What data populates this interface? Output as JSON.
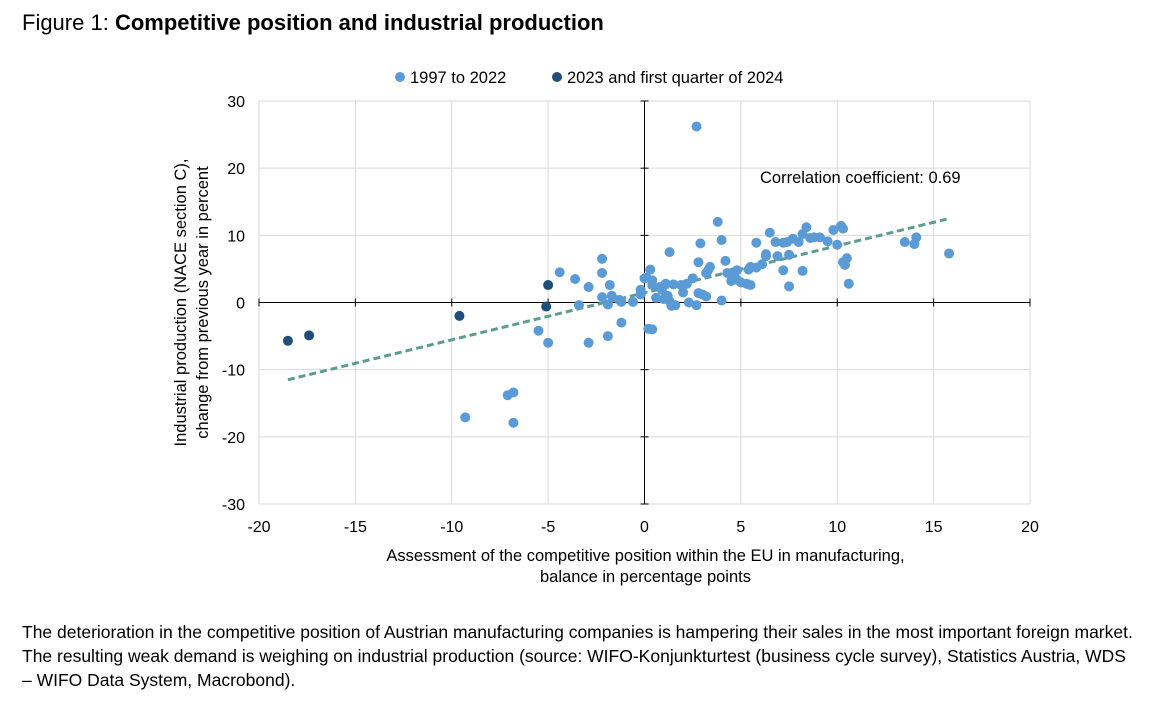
{
  "figure": {
    "label": "Figure 1:",
    "title": "Competitive position and industrial production"
  },
  "chart_data": {
    "type": "scatter",
    "title": "Competitive position and industrial production",
    "xlabel_lines": [
      "Assessment of the competitive position within the EU in manufacturing,",
      "balance in percentage points"
    ],
    "ylabel_lines": [
      "Industrial production (NACE section C),",
      "change from previous year in percent"
    ],
    "xlim": [
      -20,
      20
    ],
    "ylim": [
      -30,
      30
    ],
    "xticks": [
      -20,
      -15,
      -10,
      -5,
      0,
      5,
      10,
      15,
      20
    ],
    "yticks": [
      -30,
      -20,
      -10,
      0,
      10,
      20,
      30
    ],
    "grid": true,
    "legend_position": "top",
    "annotation": "Correlation coefficient: 0.69",
    "trendline": {
      "x": [
        -18.5,
        15.8
      ],
      "y": [
        -11.5,
        12.5
      ],
      "color": "#5a9e8f"
    },
    "series": [
      {
        "name": "1997 to 2022",
        "color": "#5b9bd5",
        "points": [
          [
            2.7,
            26.2
          ],
          [
            -9.3,
            -17.1
          ],
          [
            -7.1,
            -13.8
          ],
          [
            -6.8,
            -13.4
          ],
          [
            -6.8,
            -17.9
          ],
          [
            -5.5,
            -4.2
          ],
          [
            -5.0,
            -6.0
          ],
          [
            -2.9,
            -6.0
          ],
          [
            -1.9,
            -5.0
          ],
          [
            -1.2,
            -3.0
          ],
          [
            0.2,
            -3.9
          ],
          [
            0.4,
            -4.0
          ],
          [
            -4.4,
            4.5
          ],
          [
            -3.6,
            3.5
          ],
          [
            -3.4,
            -0.4
          ],
          [
            -2.9,
            2.3
          ],
          [
            -2.2,
            6.5
          ],
          [
            -2.2,
            4.4
          ],
          [
            -2.2,
            0.8
          ],
          [
            -1.9,
            -0.3
          ],
          [
            -1.8,
            2.6
          ],
          [
            -1.7,
            1.0
          ],
          [
            -1.3,
            0.4
          ],
          [
            -1.2,
            0.1
          ],
          [
            -0.6,
            0.1
          ],
          [
            -0.2,
            1.9
          ],
          [
            -0.2,
            1.2
          ],
          [
            0.0,
            3.6
          ],
          [
            0.1,
            3.7
          ],
          [
            0.3,
            4.9
          ],
          [
            0.4,
            2.6
          ],
          [
            0.4,
            3.3
          ],
          [
            0.6,
            0.7
          ],
          [
            0.8,
            2.3
          ],
          [
            0.9,
            1.9
          ],
          [
            1.0,
            0.5
          ],
          [
            1.1,
            2.8
          ],
          [
            1.2,
            1.0
          ],
          [
            1.3,
            0.2
          ],
          [
            1.4,
            -0.5
          ],
          [
            1.3,
            7.5
          ],
          [
            1.5,
            2.7
          ],
          [
            1.6,
            -0.4
          ],
          [
            1.9,
            2.6
          ],
          [
            2.0,
            1.5
          ],
          [
            2.2,
            2.8
          ],
          [
            2.3,
            0.0
          ],
          [
            2.5,
            3.6
          ],
          [
            2.7,
            -0.4
          ],
          [
            2.8,
            1.4
          ],
          [
            2.8,
            6.0
          ],
          [
            2.9,
            8.8
          ],
          [
            3.0,
            1.2
          ],
          [
            3.2,
            0.9
          ],
          [
            3.2,
            4.4
          ],
          [
            3.3,
            4.8
          ],
          [
            3.4,
            5.3
          ],
          [
            3.8,
            12.0
          ],
          [
            4.0,
            9.3
          ],
          [
            4.0,
            0.3
          ],
          [
            4.2,
            6.2
          ],
          [
            4.3,
            4.4
          ],
          [
            4.5,
            3.2
          ],
          [
            4.6,
            4.5
          ],
          [
            4.8,
            4.8
          ],
          [
            4.8,
            3.4
          ],
          [
            5.0,
            3.0
          ],
          [
            5.3,
            2.8
          ],
          [
            5.4,
            4.9
          ],
          [
            5.5,
            5.3
          ],
          [
            5.5,
            2.6
          ],
          [
            5.8,
            8.9
          ],
          [
            5.8,
            5.2
          ],
          [
            6.1,
            5.7
          ],
          [
            6.3,
            6.9
          ],
          [
            6.3,
            7.2
          ],
          [
            6.5,
            10.4
          ],
          [
            6.8,
            9.0
          ],
          [
            6.9,
            6.9
          ],
          [
            7.2,
            8.9
          ],
          [
            7.2,
            4.8
          ],
          [
            7.4,
            9.0
          ],
          [
            7.5,
            2.4
          ],
          [
            7.5,
            7.1
          ],
          [
            7.7,
            9.5
          ],
          [
            8.0,
            9.0
          ],
          [
            8.2,
            10.2
          ],
          [
            8.2,
            4.7
          ],
          [
            8.4,
            11.2
          ],
          [
            8.6,
            9.6
          ],
          [
            8.8,
            9.7
          ],
          [
            9.1,
            9.7
          ],
          [
            9.5,
            9.1
          ],
          [
            9.8,
            10.8
          ],
          [
            10.0,
            8.6
          ],
          [
            10.2,
            11.4
          ],
          [
            10.3,
            11.0
          ],
          [
            10.3,
            6.0
          ],
          [
            10.4,
            5.6
          ],
          [
            10.5,
            6.6
          ],
          [
            10.6,
            2.8
          ],
          [
            13.5,
            9.0
          ],
          [
            14.0,
            8.7
          ],
          [
            14.1,
            9.7
          ],
          [
            15.8,
            7.3
          ]
        ]
      },
      {
        "name": "2023 and first quarter of 2024",
        "color": "#1f4e79",
        "points": [
          [
            -18.5,
            -5.7
          ],
          [
            -17.4,
            -4.9
          ],
          [
            -9.6,
            -2.0
          ],
          [
            -5.1,
            -0.6
          ],
          [
            -5.0,
            2.6
          ]
        ]
      }
    ]
  },
  "caption": "The deterioration in the competitive position of Austrian manufacturing companies is hampering their sales in the most important foreign market. The resulting weak demand is weighing on industrial production (source: WIFO-Konjunkturtest (business cycle survey), Statistics Austria, WDS – WIFO Data System, Macrobond)."
}
